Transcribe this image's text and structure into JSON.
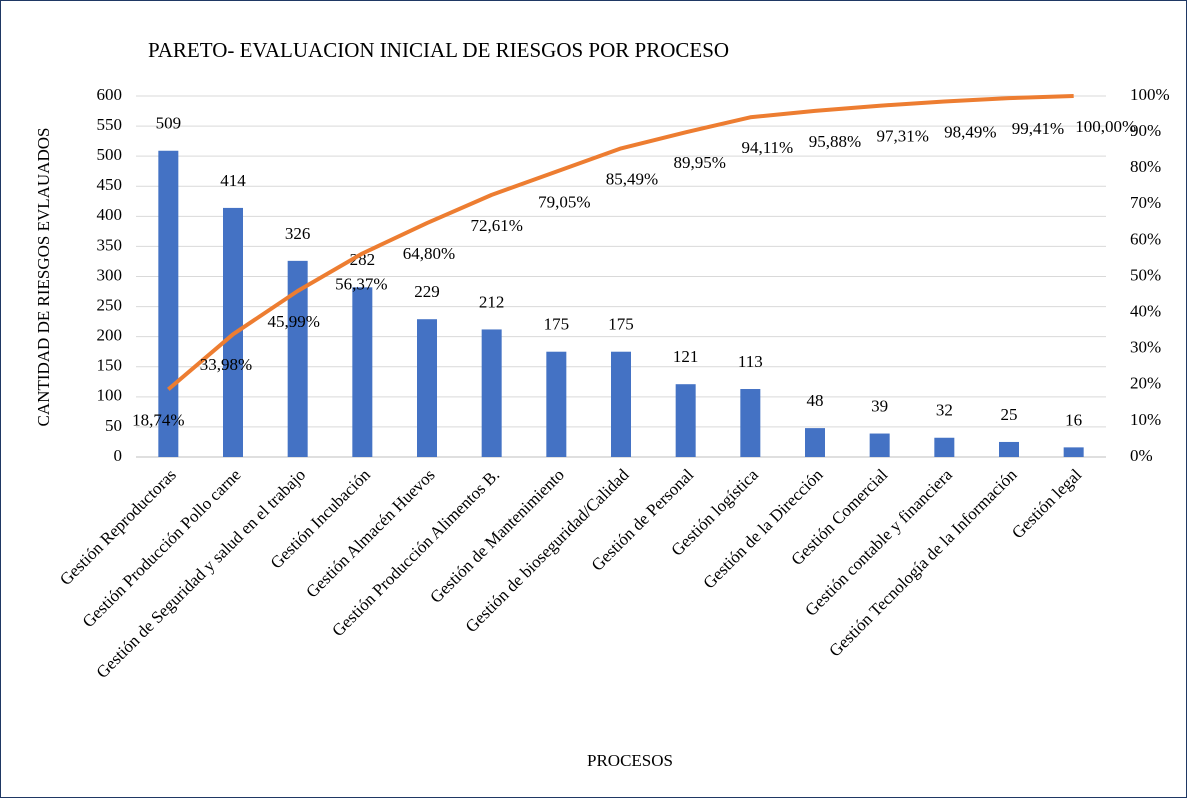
{
  "chart_data": {
    "type": "pareto",
    "title": "PARETO- EVALUACION INICIAL DE RIESGOS POR PROCESO",
    "x_label": "PROCESOS",
    "y_label": "CANTIDAD DE RIESGOS EVLAUADOS",
    "categories": [
      "Gestión Reproductoras",
      "Gestión Producción Pollo carne",
      "Gestión de Seguridad y salud en el trabajo",
      "Gestión Incubación",
      "Gestión Almacén Huevos",
      "Gestión Producción Alimentos B.",
      "Gestión de Mantenimiento",
      "Gestión de bioseguridad/Calidad",
      "Gestión de Personal",
      "Gestión logística",
      "Gestión de la Dirección",
      "Gestión Comercial",
      "Gestión contable y financiera",
      "Gestión Tecnología de la Información",
      "Gestión legal"
    ],
    "series": [
      {
        "type": "bar",
        "color": "#4472c4",
        "values": [
          509,
          414,
          326,
          282,
          229,
          212,
          175,
          175,
          121,
          113,
          48,
          39,
          32,
          25,
          16
        ]
      },
      {
        "type": "line",
        "axis": "y2",
        "color": "#ed7d31",
        "values": [
          18.74,
          33.98,
          45.99,
          56.37,
          64.8,
          72.61,
          79.05,
          85.49,
          89.95,
          94.11,
          95.88,
          97.31,
          98.49,
          99.41,
          100.0
        ],
        "value_labels": [
          "18,74%",
          "33,98%",
          "45,99%",
          "56,37%",
          "64,80%",
          "72,61%",
          "79,05%",
          "85,49%",
          "89,95%",
          "94,11%",
          "95,88%",
          "97,31%",
          "98,49%",
          "99,41%",
          "100,00%"
        ]
      }
    ],
    "ylim": [
      0,
      600
    ],
    "yticks": [
      0,
      50,
      100,
      150,
      200,
      250,
      300,
      350,
      400,
      450,
      500,
      550,
      600
    ],
    "y2lim": [
      0,
      100
    ],
    "y2ticks": [
      {
        "value": 0,
        "label": "0%"
      },
      {
        "value": 10,
        "label": "10%"
      },
      {
        "value": 20,
        "label": "20%"
      },
      {
        "value": 30,
        "label": "30%"
      },
      {
        "value": 40,
        "label": "40%"
      },
      {
        "value": 50,
        "label": "50%"
      },
      {
        "value": 60,
        "label": "60%"
      },
      {
        "value": 70,
        "label": "70%"
      },
      {
        "value": 80,
        "label": "80%"
      },
      {
        "value": 90,
        "label": "90%"
      },
      {
        "value": 100,
        "label": "100%"
      }
    ],
    "grid": true
  }
}
